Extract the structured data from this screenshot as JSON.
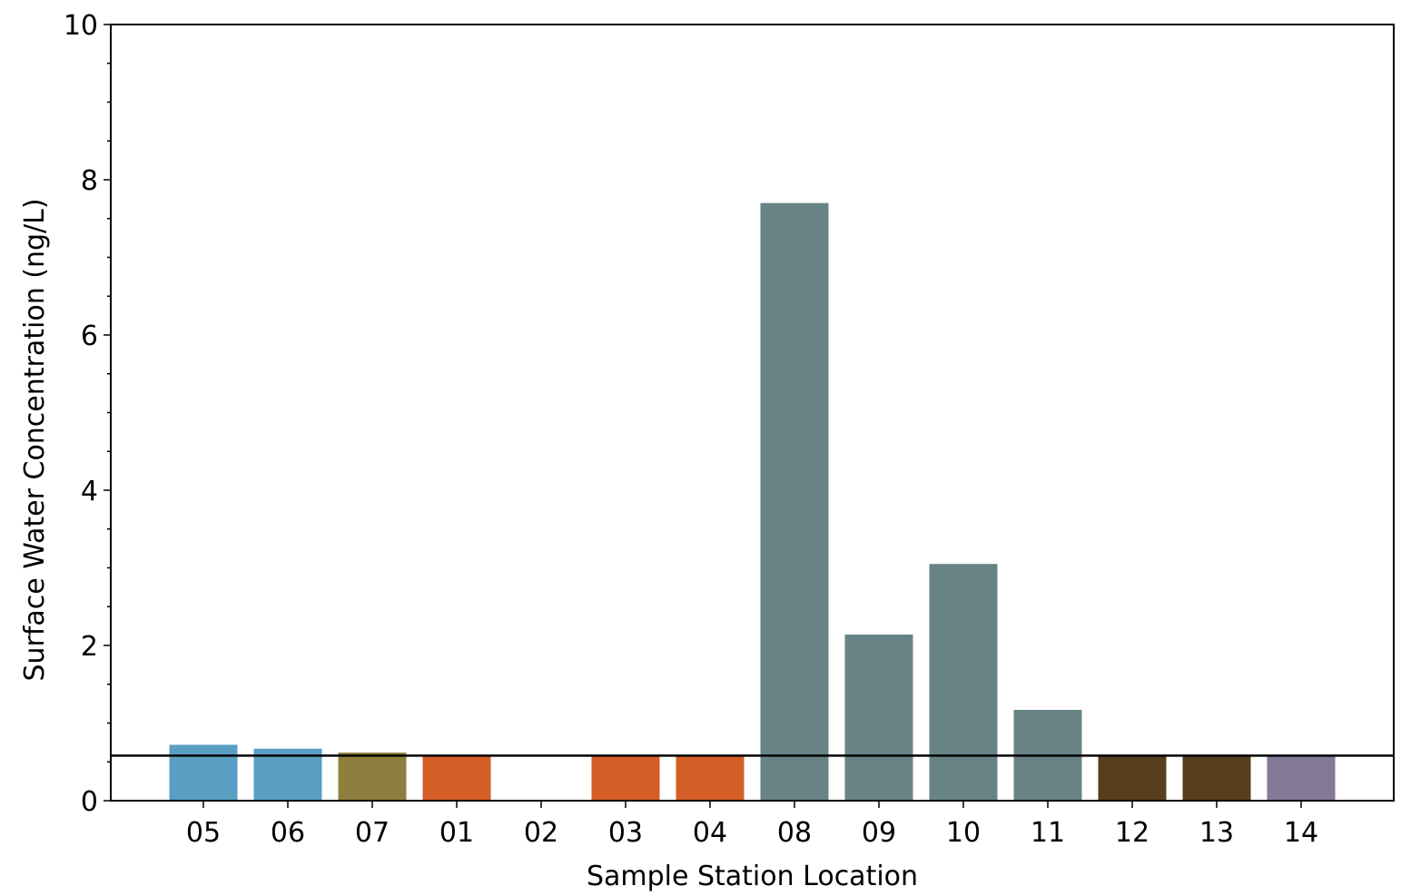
{
  "chart_data": {
    "type": "bar",
    "title": "",
    "xlabel": "Sample Station Location",
    "ylabel": "Surface Water Concentration (ng/L)",
    "ylim": [
      0,
      10
    ],
    "yticks": [
      0,
      2,
      4,
      6,
      8,
      10
    ],
    "yticks_minor_step": 0.5,
    "grid": false,
    "categories": [
      "05",
      "06",
      "07",
      "01",
      "02",
      "03",
      "04",
      "08",
      "09",
      "10",
      "11",
      "12",
      "13",
      "14"
    ],
    "values": [
      0.72,
      0.67,
      0.62,
      0.58,
      0,
      0.58,
      0.58,
      7.7,
      2.14,
      3.05,
      1.17,
      0.58,
      0.58,
      0.58
    ],
    "colors": [
      "#5a9ec4",
      "#5a9ec4",
      "#8f7f3e",
      "#d55e27",
      "#d55e27",
      "#d55e27",
      "#d55e27",
      "#688385",
      "#688385",
      "#688385",
      "#688385",
      "#573e1c",
      "#573e1c",
      "#847999"
    ],
    "reference_line": {
      "y": 0.58,
      "color": "#000000"
    }
  }
}
